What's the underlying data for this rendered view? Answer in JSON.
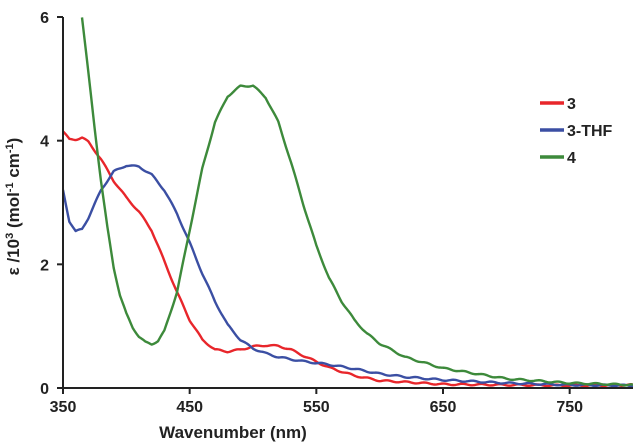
{
  "chart_data": {
    "type": "line",
    "title": "",
    "xlabel": "Wavenumber  (nm)",
    "ylabel_parts": [
      "ε /10",
      "3",
      " (mol",
      "-1",
      " cm",
      "-1",
      ")"
    ],
    "xlim": [
      350,
      800
    ],
    "ylim": [
      0,
      6
    ],
    "xticks": [
      350,
      450,
      550,
      650,
      750
    ],
    "yticks": [
      0,
      2,
      4,
      6
    ],
    "grid": false,
    "legend_position": "right",
    "series": [
      {
        "name": "3",
        "color": "#e8262b",
        "points": [
          [
            350,
            4.15
          ],
          [
            355,
            4.02
          ],
          [
            360,
            4.02
          ],
          [
            365,
            4.05
          ],
          [
            370,
            3.98
          ],
          [
            380,
            3.7
          ],
          [
            390,
            3.35
          ],
          [
            400,
            3.08
          ],
          [
            410,
            2.85
          ],
          [
            420,
            2.55
          ],
          [
            430,
            2.05
          ],
          [
            440,
            1.55
          ],
          [
            450,
            1.1
          ],
          [
            460,
            0.78
          ],
          [
            470,
            0.62
          ],
          [
            480,
            0.59
          ],
          [
            490,
            0.62
          ],
          [
            500,
            0.67
          ],
          [
            510,
            0.69
          ],
          [
            520,
            0.68
          ],
          [
            530,
            0.62
          ],
          [
            540,
            0.52
          ],
          [
            560,
            0.33
          ],
          [
            580,
            0.2
          ],
          [
            600,
            0.12
          ],
          [
            650,
            0.06
          ],
          [
            700,
            0.05
          ],
          [
            750,
            0.04
          ],
          [
            800,
            0.05
          ]
        ]
      },
      {
        "name": "3-THF",
        "color": "#3b4fa3",
        "points": [
          [
            350,
            3.2
          ],
          [
            355,
            2.7
          ],
          [
            360,
            2.53
          ],
          [
            365,
            2.57
          ],
          [
            370,
            2.75
          ],
          [
            380,
            3.2
          ],
          [
            390,
            3.5
          ],
          [
            400,
            3.6
          ],
          [
            410,
            3.58
          ],
          [
            420,
            3.45
          ],
          [
            430,
            3.2
          ],
          [
            440,
            2.82
          ],
          [
            450,
            2.35
          ],
          [
            460,
            1.85
          ],
          [
            470,
            1.4
          ],
          [
            480,
            1.02
          ],
          [
            490,
            0.78
          ],
          [
            500,
            0.64
          ],
          [
            510,
            0.56
          ],
          [
            520,
            0.5
          ],
          [
            540,
            0.43
          ],
          [
            560,
            0.38
          ],
          [
            580,
            0.31
          ],
          [
            600,
            0.23
          ],
          [
            620,
            0.18
          ],
          [
            650,
            0.13
          ],
          [
            700,
            0.08
          ],
          [
            750,
            0.05
          ],
          [
            800,
            0.04
          ]
        ]
      },
      {
        "name": "4",
        "color": "#3d8a3b",
        "points": [
          [
            365,
            6.0
          ],
          [
            370,
            5.1
          ],
          [
            375,
            4.2
          ],
          [
            380,
            3.35
          ],
          [
            385,
            2.6
          ],
          [
            390,
            1.95
          ],
          [
            395,
            1.5
          ],
          [
            400,
            1.2
          ],
          [
            405,
            0.98
          ],
          [
            410,
            0.83
          ],
          [
            415,
            0.74
          ],
          [
            420,
            0.71
          ],
          [
            425,
            0.76
          ],
          [
            430,
            0.92
          ],
          [
            440,
            1.55
          ],
          [
            450,
            2.55
          ],
          [
            460,
            3.55
          ],
          [
            470,
            4.3
          ],
          [
            480,
            4.72
          ],
          [
            490,
            4.88
          ],
          [
            500,
            4.89
          ],
          [
            510,
            4.7
          ],
          [
            520,
            4.3
          ],
          [
            530,
            3.65
          ],
          [
            540,
            2.95
          ],
          [
            550,
            2.3
          ],
          [
            560,
            1.78
          ],
          [
            570,
            1.4
          ],
          [
            580,
            1.1
          ],
          [
            590,
            0.88
          ],
          [
            600,
            0.72
          ],
          [
            620,
            0.5
          ],
          [
            650,
            0.32
          ],
          [
            700,
            0.15
          ],
          [
            750,
            0.08
          ],
          [
            800,
            0.05
          ]
        ]
      }
    ]
  }
}
